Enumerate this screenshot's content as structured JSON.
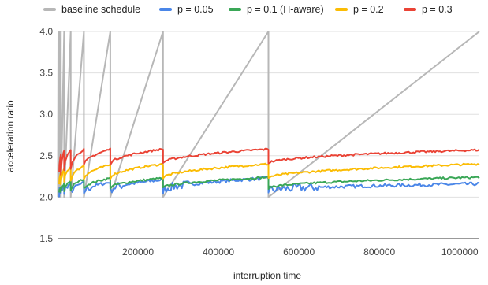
{
  "chart_data": {
    "type": "line",
    "title": "",
    "xlabel": "interruption time",
    "ylabel": "acceleration ratio",
    "xlim": [
      0,
      1048576
    ],
    "ylim": [
      1.5,
      4.0
    ],
    "grid": true,
    "legend_position": "top",
    "y_ticks": [
      1.5,
      2.0,
      2.5,
      3.0,
      3.5,
      4.0
    ],
    "y_tick_labels": [
      "1.5",
      "2.0",
      "2.5",
      "3.0",
      "3.5",
      "4.0"
    ],
    "x_ticks": [
      200000,
      400000,
      600000,
      800000,
      1000000
    ],
    "x_tick_labels": [
      "200000",
      "400000",
      "600000",
      "800000",
      "1000000"
    ],
    "series": [
      {
        "name": "baseline schedule",
        "color": "#b7b7b7",
        "style": "sawtooth",
        "x": [
          1024,
          2048,
          2048,
          4096,
          4096,
          8192,
          8192,
          16384,
          16384,
          32768,
          32768,
          65536,
          65536,
          131072,
          131072,
          262144,
          262144,
          524288,
          524288,
          1048576
        ],
        "y": [
          2.0,
          4.0,
          2.0,
          4.0,
          2.0,
          4.0,
          2.0,
          4.0,
          2.0,
          4.0,
          2.0,
          4.0,
          2.0,
          4.0,
          2.0,
          4.0,
          2.0,
          4.0,
          2.0,
          4.0
        ]
      },
      {
        "name": "p = 0.05",
        "color": "#4a86e8",
        "style": "noisy",
        "x": [
          4096,
          8192,
          8192,
          16384,
          16384,
          32768,
          32768,
          65536,
          65536,
          131072,
          131072,
          262144,
          262144,
          524288,
          524288,
          1048576
        ],
        "y": [
          2.05,
          2.1,
          2.02,
          2.12,
          2.05,
          2.16,
          2.06,
          2.17,
          2.06,
          2.18,
          2.08,
          2.21,
          2.08,
          2.23,
          2.08,
          2.16
        ]
      },
      {
        "name": "p = 0.1 (H-aware)",
        "color": "#3aa757",
        "style": "sawtooth-smooth",
        "x": [
          4096,
          8192,
          8192,
          16384,
          16384,
          32768,
          32768,
          65536,
          65536,
          131072,
          131072,
          262144,
          262144,
          524288,
          524288,
          1048576
        ],
        "y": [
          2.05,
          2.12,
          2.05,
          2.16,
          2.07,
          2.2,
          2.08,
          2.22,
          2.1,
          2.23,
          2.11,
          2.23,
          2.11,
          2.24,
          2.11,
          2.24
        ]
      },
      {
        "name": "p = 0.2",
        "color": "#fbbc04",
        "style": "sawtooth-smooth",
        "x": [
          4096,
          8192,
          8192,
          16384,
          16384,
          32768,
          32768,
          65536,
          65536,
          131072,
          131072,
          262144,
          262144,
          524288,
          524288,
          1048576
        ],
        "y": [
          2.15,
          2.3,
          2.15,
          2.34,
          2.18,
          2.37,
          2.2,
          2.38,
          2.22,
          2.39,
          2.23,
          2.4,
          2.23,
          2.4,
          2.23,
          2.4
        ]
      },
      {
        "name": "p = 0.3",
        "color": "#ea4335",
        "style": "sawtooth-smooth",
        "x": [
          4096,
          8192,
          8192,
          16384,
          16384,
          32768,
          32768,
          65536,
          65536,
          131072,
          131072,
          262144,
          262144,
          524288,
          524288,
          1048576
        ],
        "y": [
          2.3,
          2.52,
          2.28,
          2.56,
          2.32,
          2.58,
          2.35,
          2.58,
          2.38,
          2.58,
          2.4,
          2.58,
          2.41,
          2.58,
          2.41,
          2.57
        ]
      }
    ]
  }
}
